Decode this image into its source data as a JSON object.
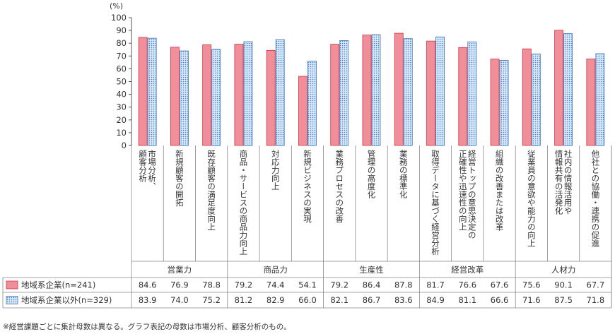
{
  "chart_data": {
    "type": "bar",
    "y_unit": "(%)",
    "ylim": [
      0,
      100
    ],
    "yticks": [
      0,
      10,
      20,
      30,
      40,
      50,
      60,
      70,
      80,
      90,
      100
    ],
    "grid": false,
    "legend_position": "table-left",
    "categories": [
      "市場分析、顧客分析",
      "新規顧客の開拓",
      "既存顧客の満足度向上",
      "商品・サービスの商品力向上",
      "対応力向上",
      "新規ビジネスの実現",
      "業務プロセスの改善",
      "管理の高度化",
      "業務の標準化",
      "取得データに基づく経営分析",
      "経営トップの意思決定の正確性や迅速性の向上",
      "組織の改善または改革",
      "従業員の意欲や能力の向上",
      "社内の情報活用や情報共有の活発化",
      "他社との協働・連携の促進"
    ],
    "category_label_lines": [
      [
        "市場分析、",
        "顧客分析"
      ],
      [
        "新規顧客の開拓"
      ],
      [
        "既存顧客の満足度向上"
      ],
      [
        "商品・サービスの商品力向上"
      ],
      [
        "対応力向上"
      ],
      [
        "新規ビジネスの実現"
      ],
      [
        "業務プロセスの改善"
      ],
      [
        "管理の高度化"
      ],
      [
        "業務の標準化"
      ],
      [
        "取得データに基づく経営分析"
      ],
      [
        "経営トップの意思決定の",
        "正確性や迅速性の向上"
      ],
      [
        "組織の改善または改革"
      ],
      [
        "従業員の意欲や能力の向上"
      ],
      [
        "社内の情報活用や",
        "情報共有の活発化"
      ],
      [
        "他社との協働・連携の促進"
      ]
    ],
    "groups": [
      {
        "label": "営業力",
        "span": 3
      },
      {
        "label": "商品力",
        "span": 3
      },
      {
        "label": "生産性",
        "span": 3
      },
      {
        "label": "経営改革",
        "span": 3
      },
      {
        "label": "人材力",
        "span": 3
      }
    ],
    "series": [
      {
        "name": "地域系企業(n=241)",
        "color": "#f08f99",
        "values": [
          84.6,
          76.9,
          78.8,
          79.2,
          74.4,
          54.1,
          79.2,
          86.4,
          87.8,
          81.7,
          76.6,
          67.6,
          75.6,
          90.1,
          67.7
        ]
      },
      {
        "name": "地域系企業以外(n=329)",
        "color": "#cfe3f7",
        "values": [
          83.9,
          74.0,
          75.2,
          81.2,
          82.9,
          66.0,
          82.1,
          86.7,
          83.6,
          84.9,
          81.1,
          66.6,
          71.6,
          87.5,
          71.8
        ]
      }
    ]
  },
  "footnote": "※経営課題ごとに集計母数は異なる。グラフ表記の母数は市場分析、顧客分析のもの。"
}
